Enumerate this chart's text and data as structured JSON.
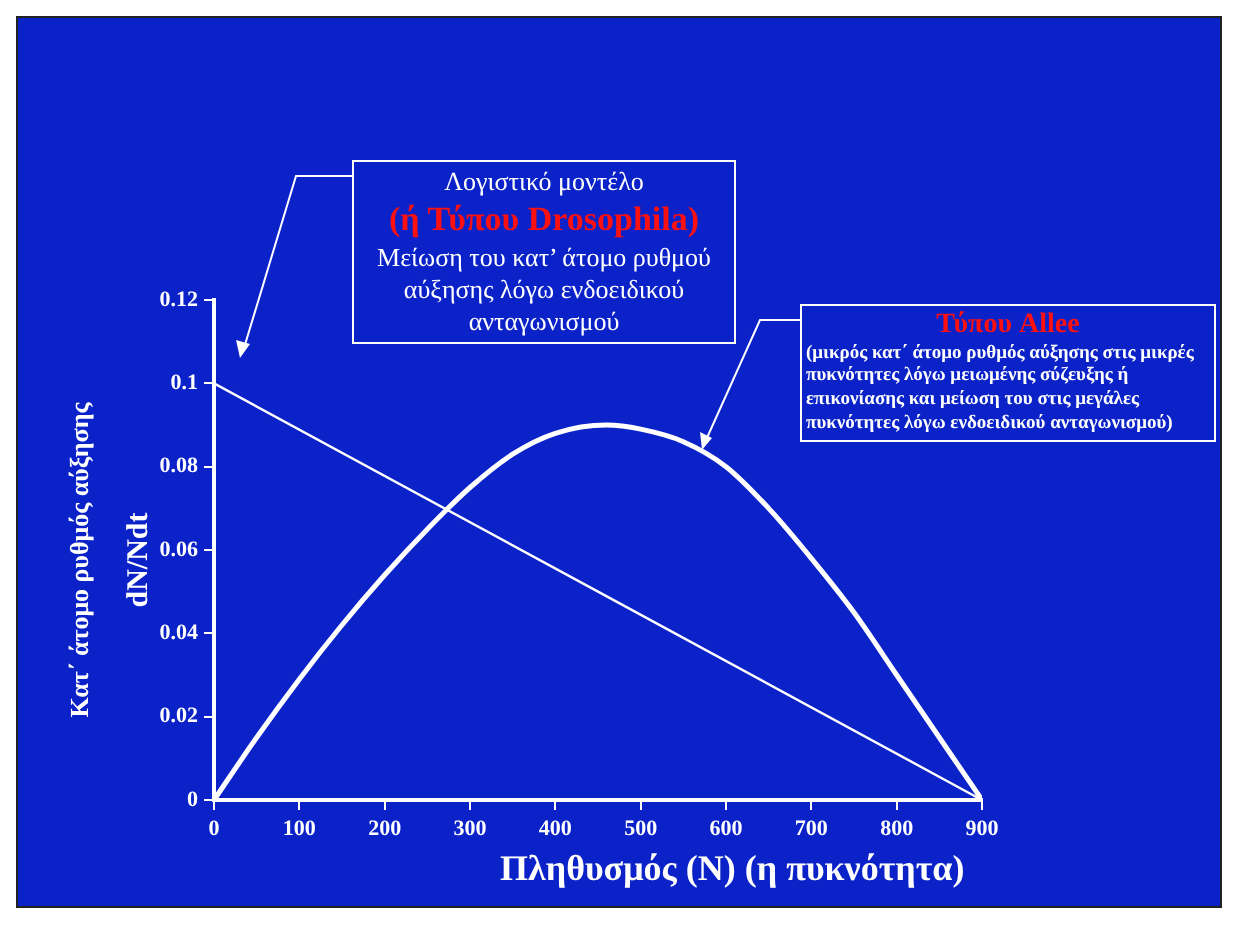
{
  "chart_data": {
    "type": "line",
    "xlabel": "Πληθυσμός (N) (η πυκνότητα)",
    "ylabel": "dN/Ndt",
    "xlim": [
      0,
      900
    ],
    "xticks": [
      0,
      100,
      200,
      300,
      400,
      500,
      600,
      700,
      800,
      900
    ],
    "ylim": [
      0,
      0.12
    ],
    "yticks": [
      0,
      0.02,
      0.04,
      0.06,
      0.08,
      0.1,
      0.12
    ],
    "grid": false,
    "legend": false,
    "marker": "none",
    "series": [
      {
        "color": "#ffffff",
        "x": [
          0,
          900
        ],
        "values": [
          0.1,
          0
        ]
      },
      {
        "color": "#ffffff",
        "x": [
          0,
          50,
          100,
          150,
          200,
          250,
          300,
          350,
          400,
          460,
          500,
          550,
          600,
          650,
          700,
          750,
          800,
          850,
          900
        ],
        "values": [
          0,
          0.015,
          0.029,
          0.042,
          0.054,
          0.065,
          0.075,
          0.083,
          0.088,
          0.09,
          0.089,
          0.086,
          0.08,
          0.07,
          0.058,
          0.045,
          0.03,
          0.015,
          0
        ]
      }
    ],
    "annotations": [
      "Λογιστικό μοντέλο",
      "(ή Τύπου Drosophila)",
      "Μείωση του κατ’ άτομο ρυθμού αύξησης λόγω ενδοειδικού ανταγωνισμού",
      "Τύπου Allee",
      "(μικρός κατ΄ άτομο ρυθμός αύξησης στις μικρές πυκνότητες λόγω μειωμένης σύζευξης ή επικονίασης και μείωση του στις μεγάλες πυκνότητες λόγω ενδοειδικού ανταγωνισμού)",
      "Κατ΄ άτομο ρυθμός αύξησης"
    ]
  }
}
